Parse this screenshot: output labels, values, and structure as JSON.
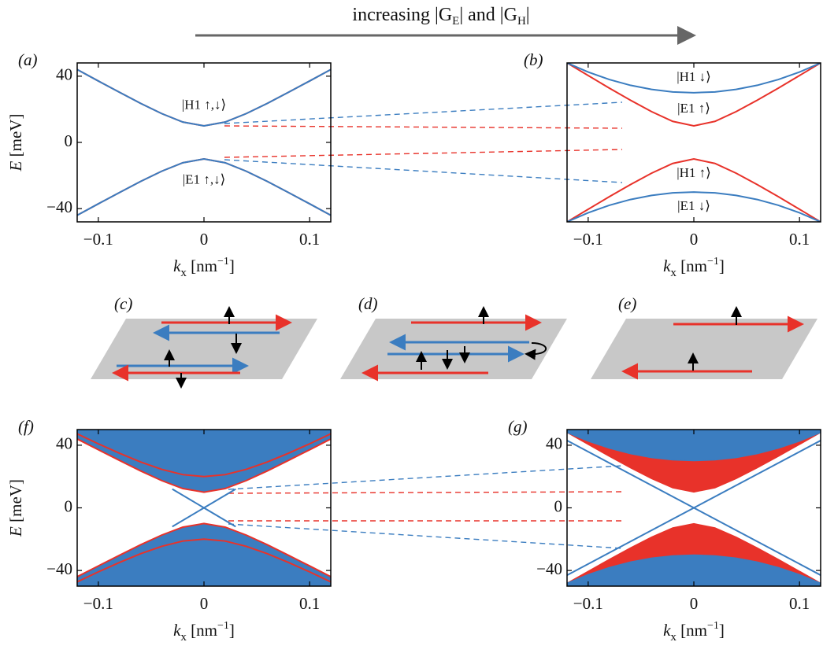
{
  "header": {
    "parts": [
      {
        "text": "increasing |G",
        "style": "normal"
      },
      {
        "text": "E",
        "style": "sub"
      },
      {
        "text": "| and |G",
        "style": "normal"
      },
      {
        "text": "H",
        "style": "sub"
      },
      {
        "text": "|",
        "style": "normal"
      }
    ]
  },
  "schematics": {
    "labels": [
      "(c)",
      "(d)",
      "(e)"
    ]
  },
  "chart_data": [
    {
      "type": "line",
      "panel_label": "(a)",
      "x": [
        -0.12,
        -0.1,
        -0.08,
        -0.06,
        -0.04,
        -0.02,
        0,
        0.02,
        0.04,
        0.06,
        0.08,
        0.1,
        0.12
      ],
      "xlim": [
        -0.12,
        0.12
      ],
      "ylim": [
        -48,
        48
      ],
      "xticks": [
        {
          "value": -0.1,
          "label": "−0.1"
        },
        0,
        0.1
      ],
      "yticks": [
        {
          "value": -40,
          "label": "−40"
        },
        0,
        40
      ],
      "x_label": [
        {
          "text": "k",
          "style": "italic"
        },
        {
          "text": "x",
          "style": "sub"
        },
        {
          "text": " [nm",
          "style": "normal"
        },
        {
          "text": "−1",
          "style": "sup"
        },
        {
          "text": "]",
          "style": "normal"
        }
      ],
      "y_label": [
        {
          "text": "E",
          "style": "italic"
        },
        {
          "text": " [meV]",
          "style": "normal"
        }
      ],
      "series": [
        {
          "color": "#e8322a",
          "values": [
            44,
            37.1,
            30.3,
            23.6,
            17.4,
            12.3,
            10,
            12.3,
            17.4,
            23.6,
            30.3,
            37.1,
            44
          ]
        },
        {
          "color": "#e8322a",
          "values": [
            -44,
            -37.1,
            -30.3,
            -23.6,
            -17.4,
            -12.3,
            -10,
            -12.3,
            -17.4,
            -23.6,
            -30.3,
            -37.1,
            -44
          ]
        },
        {
          "color": "#3b7dc0",
          "values": [
            44,
            37.1,
            30.3,
            23.6,
            17.4,
            12.3,
            10,
            12.3,
            17.4,
            23.6,
            30.3,
            37.1,
            44
          ]
        },
        {
          "color": "#3b7dc0",
          "values": [
            -44,
            -37.1,
            -30.3,
            -23.6,
            -17.4,
            -12.3,
            -10,
            -12.3,
            -17.4,
            -23.6,
            -30.3,
            -37.1,
            -44
          ]
        }
      ],
      "annotations": [
        {
          "text": "|H1 ↑,↓⟩",
          "x": 0,
          "y": 22
        },
        {
          "text": "|E1 ↑,↓⟩",
          "x": 0,
          "y": -23
        }
      ]
    },
    {
      "type": "line",
      "panel_label": "(b)",
      "x": [
        -0.12,
        -0.1,
        -0.08,
        -0.06,
        -0.04,
        -0.02,
        0,
        0.02,
        0.04,
        0.06,
        0.08,
        0.1,
        0.12
      ],
      "xlim": [
        -0.12,
        0.12
      ],
      "ylim": [
        -48,
        48
      ],
      "xticks": [
        {
          "value": -0.1,
          "label": "−0.1"
        },
        0,
        0.1
      ],
      "x_label": [
        {
          "text": "k",
          "style": "italic"
        },
        {
          "text": "x",
          "style": "sub"
        },
        {
          "text": " [nm",
          "style": "normal"
        },
        {
          "text": "−1",
          "style": "sup"
        },
        {
          "text": "]",
          "style": "normal"
        }
      ],
      "series": [
        {
          "color": "#e8322a",
          "values": [
            48,
            40.4,
            32.8,
            25.5,
            18.6,
            12.7,
            10,
            12.7,
            18.6,
            25.5,
            32.8,
            40.4,
            48
          ]
        },
        {
          "color": "#e8322a",
          "values": [
            -48,
            -40.4,
            -32.8,
            -25.5,
            -18.6,
            -12.7,
            -10,
            -12.7,
            -18.6,
            -25.5,
            -32.8,
            -40.4,
            -48
          ]
        },
        {
          "color": "#3b7dc0",
          "values": [
            48,
            42.5,
            38,
            34.5,
            32,
            30.5,
            30,
            30.5,
            32,
            34.5,
            38,
            42.5,
            48
          ]
        },
        {
          "color": "#3b7dc0",
          "values": [
            -48,
            -42.5,
            -38,
            -34.5,
            -32,
            -30.5,
            -30,
            -30.5,
            -32,
            -34.5,
            -38,
            -42.5,
            -48
          ]
        }
      ],
      "annotations": [
        {
          "text": "|H1 ↓⟩",
          "x": 0,
          "y": 39
        },
        {
          "text": "|E1 ↑⟩",
          "x": 0,
          "y": 20
        },
        {
          "text": "|H1 ↑⟩",
          "x": 0,
          "y": -19
        },
        {
          "text": "|E1 ↓⟩",
          "x": 0,
          "y": -39
        }
      ]
    },
    {
      "type": "line",
      "panel_label": "(f)",
      "x": [
        -0.12,
        -0.1,
        -0.08,
        -0.06,
        -0.04,
        -0.02,
        0,
        0.02,
        0.04,
        0.06,
        0.08,
        0.1,
        0.12
      ],
      "xlim": [
        -0.12,
        0.12
      ],
      "ylim": [
        -50,
        50
      ],
      "xticks": [
        {
          "value": -0.1,
          "label": "−0.1"
        },
        0,
        0.1
      ],
      "yticks": [
        {
          "value": -40,
          "label": "−40"
        },
        0,
        40
      ],
      "x_label": [
        {
          "text": "k",
          "style": "italic"
        },
        {
          "text": "x",
          "style": "sub"
        },
        {
          "text": " [nm",
          "style": "normal"
        },
        {
          "text": "−1",
          "style": "sup"
        },
        {
          "text": "]",
          "style": "normal"
        }
      ],
      "y_label": [
        {
          "text": "E",
          "style": "italic"
        },
        {
          "text": " [meV]",
          "style": "normal"
        }
      ],
      "series": [
        {
          "color": "#3b7dc0",
          "fill": "above",
          "values": [
            44,
            37.1,
            30.3,
            23.6,
            17.4,
            12.3,
            10,
            12.3,
            17.4,
            23.6,
            30.3,
            37.1,
            44
          ]
        },
        {
          "color": "#3b7dc0",
          "fill": "below",
          "values": [
            -44,
            -37.1,
            -30.3,
            -23.6,
            -17.4,
            -12.3,
            -10,
            -12.3,
            -17.4,
            -23.6,
            -30.3,
            -37.1,
            -44
          ]
        },
        {
          "color": "#e8322a",
          "values": [
            44,
            37.1,
            30.3,
            23.6,
            17.4,
            12.3,
            10,
            12.3,
            17.4,
            23.6,
            30.3,
            37.1,
            44
          ]
        },
        {
          "color": "#e8322a",
          "values": [
            -44,
            -37.1,
            -30.3,
            -23.6,
            -17.4,
            -12.3,
            -10,
            -12.3,
            -17.4,
            -23.6,
            -30.3,
            -37.1,
            -44
          ]
        },
        {
          "color": "#e8322a",
          "values": [
            47.3,
            40.9,
            34.9,
            29.3,
            24.6,
            21.2,
            20,
            21.2,
            24.6,
            29.3,
            34.9,
            40.9,
            47.3
          ]
        },
        {
          "color": "#e8322a",
          "values": [
            -47.3,
            -40.9,
            -34.9,
            -29.3,
            -24.6,
            -21.2,
            -20,
            -21.2,
            -24.6,
            -29.3,
            -34.9,
            -40.9,
            -47.3
          ]
        },
        {
          "color": "#3b7dc0",
          "x": [
            -0.03,
            0.03
          ],
          "values": [
            -12,
            12
          ]
        },
        {
          "color": "#3b7dc0",
          "x": [
            -0.03,
            0.03
          ],
          "values": [
            12,
            -12
          ]
        }
      ]
    },
    {
      "type": "line",
      "panel_label": "(g)",
      "x": [
        -0.12,
        -0.1,
        -0.08,
        -0.06,
        -0.04,
        -0.02,
        0,
        0.02,
        0.04,
        0.06,
        0.08,
        0.1,
        0.12
      ],
      "xlim": [
        -0.12,
        0.12
      ],
      "ylim": [
        -50,
        50
      ],
      "xticks": [
        {
          "value": -0.1,
          "label": "−0.1"
        },
        0,
        0.1
      ],
      "yticks": [
        {
          "value": -40,
          "label": "−40"
        },
        0,
        40
      ],
      "x_label": [
        {
          "text": "k",
          "style": "italic"
        },
        {
          "text": "x",
          "style": "sub"
        },
        {
          "text": " [nm",
          "style": "normal"
        },
        {
          "text": "−1",
          "style": "sup"
        },
        {
          "text": "]",
          "style": "normal"
        }
      ],
      "series": [
        {
          "color": "#e8322a",
          "fill": "above",
          "values": [
            48,
            40.4,
            32.8,
            25.5,
            18.6,
            12.7,
            10,
            12.7,
            18.6,
            25.5,
            32.8,
            40.4,
            48
          ]
        },
        {
          "color": "#e8322a",
          "fill": "below",
          "values": [
            -48,
            -40.4,
            -32.8,
            -25.5,
            -18.6,
            -12.7,
            -10,
            -12.7,
            -18.6,
            -25.5,
            -32.8,
            -40.4,
            -48
          ]
        },
        {
          "color": "#3b7dc0",
          "fill": "above",
          "values": [
            48,
            42.5,
            38,
            34.5,
            32,
            30.5,
            30,
            30.5,
            32,
            34.5,
            38,
            42.5,
            48
          ]
        },
        {
          "color": "#3b7dc0",
          "fill": "below",
          "values": [
            -48,
            -42.5,
            -38,
            -34.5,
            -32,
            -30.5,
            -30,
            -30.5,
            -32,
            -34.5,
            -38,
            -42.5,
            -48
          ]
        },
        {
          "color": "#3b7dc0",
          "x": [
            -0.12,
            0.12
          ],
          "values": [
            -43,
            43
          ]
        },
        {
          "color": "#3b7dc0",
          "x": [
            -0.12,
            0.12
          ],
          "values": [
            43,
            -43
          ]
        }
      ]
    }
  ]
}
